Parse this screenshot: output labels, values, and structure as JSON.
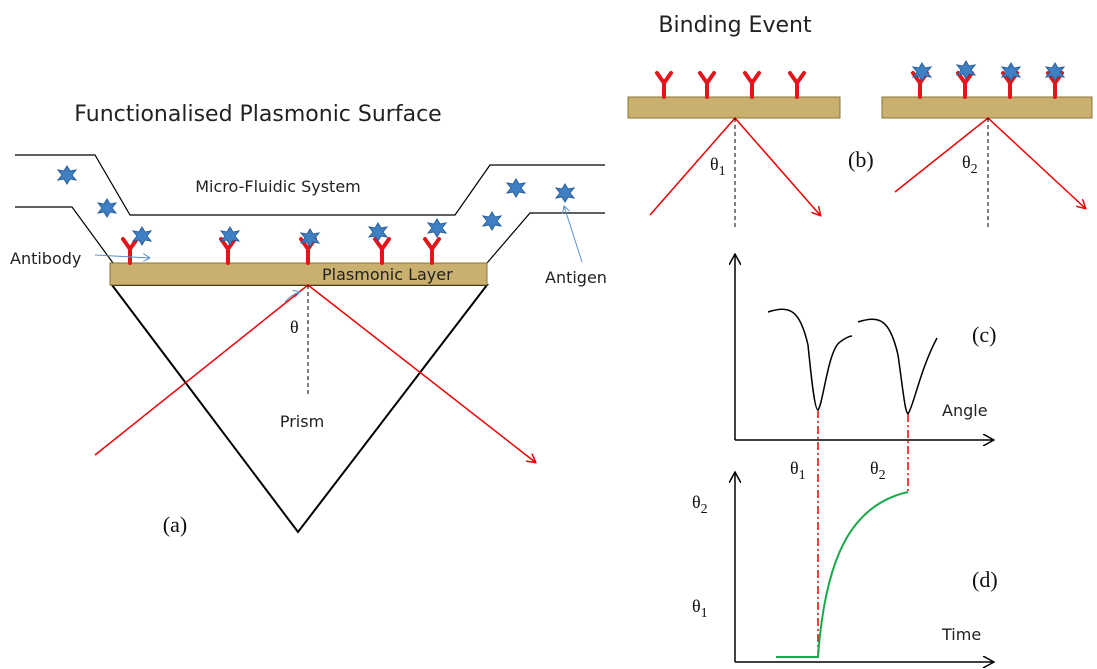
{
  "header": {
    "title": "Binding Event"
  },
  "panel_a": {
    "title": "Functionalised Plasmonic Surface",
    "channel": "Micro-Fluidic System",
    "antibody": "Antibody",
    "layer": "Plasmonic Layer",
    "antigen": "Antigen",
    "angle": "θ",
    "prism": "Prism",
    "label": "(a)"
  },
  "panel_b": {
    "label": "(b)",
    "angle_before": {
      "symbol": "θ",
      "subscript": "1"
    },
    "angle_after": {
      "symbol": "θ",
      "subscript": "2"
    }
  },
  "panel_c": {
    "label": "(c)",
    "x_axis": "Angle",
    "x_ticks": [
      {
        "symbol": "θ",
        "subscript": "1"
      },
      {
        "symbol": "θ",
        "subscript": "2"
      }
    ]
  },
  "panel_d": {
    "label": "(d)",
    "x_axis": "Time",
    "y_ticks": [
      {
        "symbol": "θ",
        "subscript": "2"
      },
      {
        "symbol": "θ",
        "subscript": "1"
      }
    ]
  }
}
